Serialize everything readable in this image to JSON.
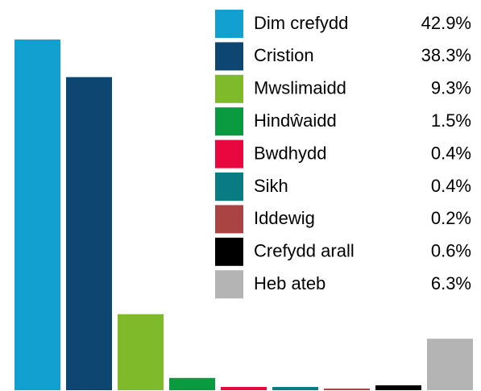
{
  "chart_data": {
    "type": "bar",
    "categories": [
      "Dim crefydd",
      "Cristion",
      "Mwslimaidd",
      "Hindŵaidd",
      "Bwdhydd",
      "Sikh",
      "Iddewig",
      "Crefydd arall",
      "Heb ateb"
    ],
    "values": [
      42.9,
      38.3,
      9.3,
      1.5,
      0.4,
      0.4,
      0.2,
      0.6,
      6.3
    ],
    "value_labels": [
      "42.9%",
      "38.3%",
      "9.3%",
      "1.5%",
      "0.4%",
      "0.4%",
      "0.2%",
      "0.6%",
      "6.3%"
    ],
    "colors": [
      "#12a0d0",
      "#0d4670",
      "#7fba2b",
      "#0a9a40",
      "#e8083f",
      "#087c82",
      "#a94442",
      "#000000",
      "#b4b4b4"
    ],
    "legend": "top-right"
  }
}
